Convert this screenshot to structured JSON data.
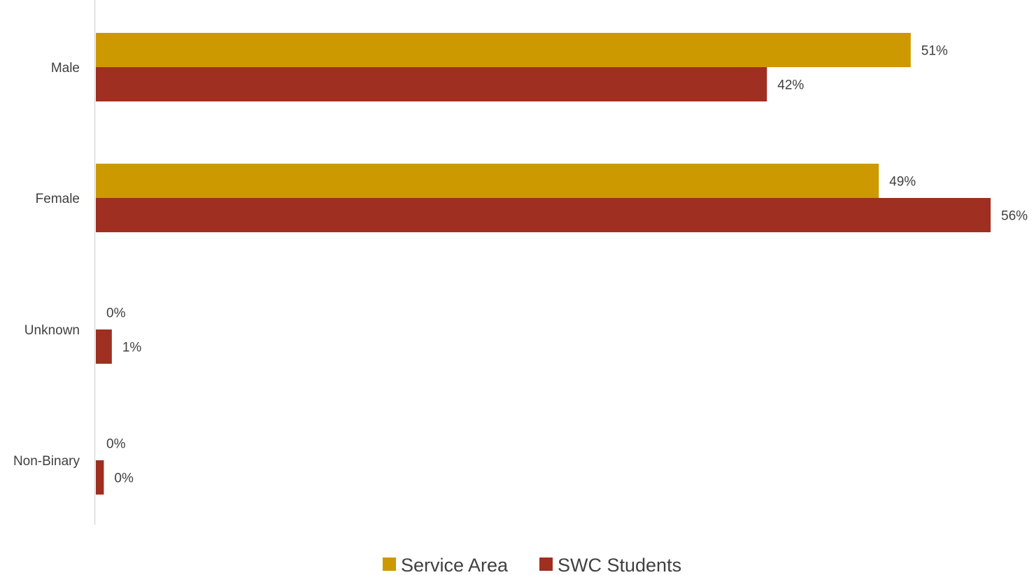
{
  "chart_data": {
    "type": "bar",
    "orientation": "horizontal",
    "title": "",
    "xlabel": "",
    "ylabel": "",
    "categories": [
      "Male",
      "Female",
      "Unknown",
      "Non-Binary"
    ],
    "series": [
      {
        "name": "Service Area",
        "color": "#CC9900",
        "values": [
          51,
          49,
          0,
          0
        ],
        "labels": [
          "51%",
          "49%",
          "0%",
          "0%"
        ]
      },
      {
        "name": "SWC Students",
        "color": "#9E2F21",
        "values": [
          42,
          56,
          1,
          0.5
        ],
        "labels": [
          "42%",
          "56%",
          "1%",
          "0%"
        ]
      }
    ],
    "xlim": [
      0,
      56
    ],
    "grid": false,
    "legend_position": "bottom"
  }
}
